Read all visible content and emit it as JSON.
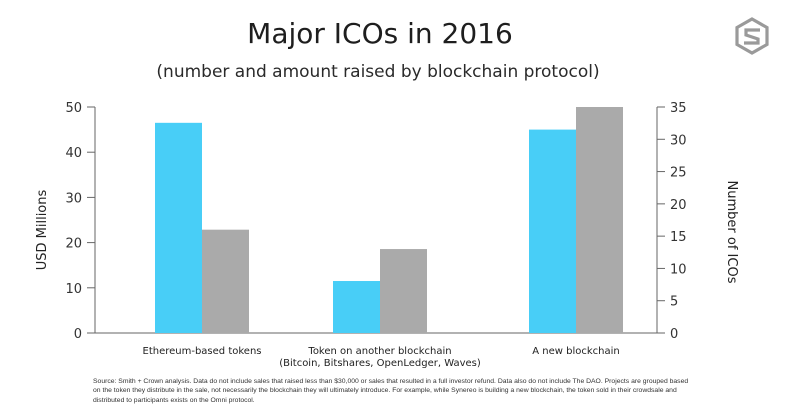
{
  "brand": {
    "logo_icon": "hexagon-s-logo-icon",
    "logo_color": "#9a9a9a"
  },
  "chart_data": {
    "type": "bar",
    "title": "Major ICOs in 2016",
    "subtitle": "(number and amount raised by blockchain protocol)",
    "categories": [
      [
        "Ethereum-based tokens"
      ],
      [
        "Token on another blockchain",
        "(Bitcoin, Bitshares, OpenLedger, Waves)"
      ],
      [
        "A new blockchain"
      ]
    ],
    "series": [
      {
        "name": "USD Millions",
        "axis": "left",
        "color": "#48cef7",
        "values": [
          46.5,
          11.5,
          45
        ]
      },
      {
        "name": "Number of ICOs",
        "axis": "right",
        "color": "#aaaaaa",
        "values": [
          16,
          13,
          35
        ]
      }
    ],
    "ylabel_left": "USD Millions",
    "ylabel_right": "Number of ICOs",
    "ylim_left": [
      0,
      50
    ],
    "ylim_right": [
      0,
      35
    ],
    "yticks_left": [
      "0",
      "10",
      "20",
      "30",
      "40",
      "50"
    ],
    "yticks_right": [
      "0",
      "5",
      "10",
      "15",
      "20",
      "25",
      "30",
      "35"
    ],
    "grid": false,
    "legend": "none"
  },
  "source_note": "Source: Smith + Crown analysis. Data do not include sales that raised less than $30,000 or sales that resulted in a full investor refund. Data also do not include The DAO. Projects are grouped based on the token they distribute in the sale, not necessarily the blockchain they will ultimately introduce. For example, while Synereo is building a new blockchain, the token sold in their crowdsale and distributed to participants exists on the Omni protocol."
}
